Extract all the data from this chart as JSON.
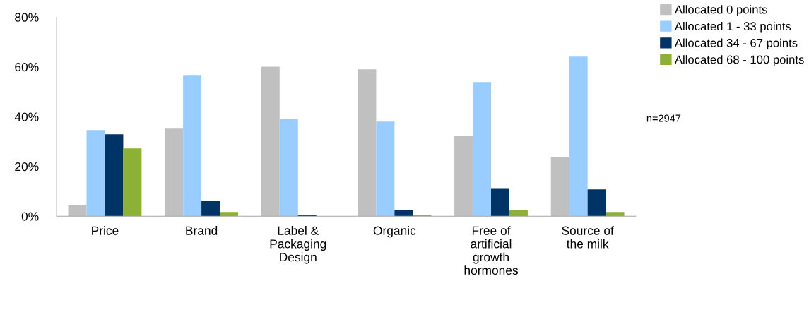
{
  "chart_data": {
    "type": "bar",
    "categories": [
      "Price",
      "Brand",
      "Label &\nPackaging\nDesign",
      "Organic",
      "Free of\nartificial\ngrowth\nhormones",
      "Source of\nthe milk"
    ],
    "series": [
      {
        "name": "Allocated 0 points",
        "color": "#c0c0c0",
        "values": [
          4.5,
          35.2,
          60.1,
          59.0,
          32.3,
          23.8
        ]
      },
      {
        "name": "Allocated 1 - 33 points",
        "color": "#99ccff",
        "values": [
          34.6,
          56.7,
          39.1,
          38.0,
          53.9,
          64.1
        ]
      },
      {
        "name": "Allocated 34 - 67 points",
        "color": "#003366",
        "values": [
          32.9,
          6.2,
          0.6,
          2.3,
          11.3,
          10.8
        ]
      },
      {
        "name": "Allocated 68 - 100 points",
        "color": "#8db036",
        "values": [
          27.2,
          1.7,
          0,
          0.6,
          2.3,
          1.7
        ]
      }
    ],
    "ylim": [
      0,
      80
    ],
    "yticks": [
      {
        "value": 0,
        "label": "0%"
      },
      {
        "value": 20,
        "label": "20%"
      },
      {
        "value": 40,
        "label": "40%"
      },
      {
        "value": 60,
        "label": "60%"
      },
      {
        "value": 80,
        "label": "80%"
      }
    ],
    "annotations": [
      "n=2947"
    ],
    "legend": "top right",
    "grid": false
  }
}
